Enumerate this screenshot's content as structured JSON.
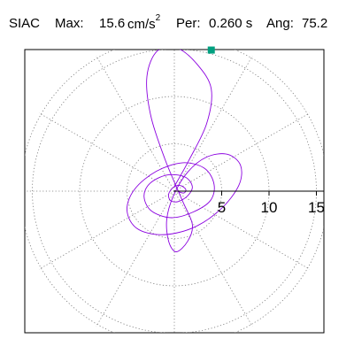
{
  "header": {
    "station": "SIAC",
    "max_label": "Max:",
    "max_value": "15.6",
    "max_unit_base": "cm/s",
    "max_unit_exp": "2",
    "per_label": "Per:",
    "per_value": "0.260 s",
    "ang_label": "Ang:",
    "ang_value": "75.2"
  },
  "chart_data": {
    "type": "line",
    "title": "SIAC  Max: 15.6 cm/s2  Per: 0.260 s  Ang: 75.2",
    "xlabel": "",
    "ylabel": "",
    "polar": true,
    "radial_range": [
      0,
      16.5
    ],
    "radial_ticks": [
      5,
      10,
      15
    ],
    "radial_tick_labels": [
      "5",
      "10",
      "15"
    ],
    "angular_grid_deg": [
      0,
      30,
      60,
      90,
      120,
      150,
      180,
      210,
      240,
      270,
      300,
      330
    ],
    "grid": true,
    "grid_style": "dotted",
    "series": [
      {
        "color": "#8b00e0",
        "x": [
          0,
          1.5,
          3.4,
          3.9,
          2.4,
          0.3,
          -1.8,
          -2.9,
          -2.5,
          -1.0,
          0.8,
          1.9,
          1.4,
          0.2,
          -0.6,
          -0.8,
          -0.1,
          1.4,
          3.4,
          5.6,
          7.0,
          6.8,
          4.9,
          1.9,
          -1.4,
          -4.0,
          -5.0,
          -4.2,
          -1.9,
          0.9,
          3.2,
          4.2,
          3.8,
          2.0,
          -0.3,
          -2.4,
          -3.2,
          -2.6,
          -0.8,
          1.1,
          1.9,
          1.4,
          0.4,
          -0.4,
          -0.6,
          -0.1,
          0.6,
          1.2,
          1.0,
          0.3
        ],
        "y": [
          0.5,
          3.2,
          7.1,
          10.8,
          13.4,
          15.1,
          14.8,
          12.1,
          8.0,
          3.4,
          -0.9,
          -3.5,
          -5.3,
          -6.4,
          -5.3,
          -3.0,
          -0.5,
          2.0,
          3.6,
          3.9,
          2.7,
          0.6,
          -1.9,
          -3.9,
          -4.6,
          -3.9,
          -2.0,
          0.2,
          2.1,
          3.0,
          2.4,
          0.7,
          -1.0,
          -2.2,
          -2.8,
          -2.1,
          -0.6,
          0.8,
          1.7,
          1.5,
          0.5,
          -0.5,
          -1.1,
          -1.0,
          -0.3,
          0.4,
          0.6,
          0.2,
          -0.2,
          0.0
        ]
      }
    ],
    "marker": {
      "x": 3.9,
      "y": 14.9,
      "color": "#00a080"
    }
  }
}
